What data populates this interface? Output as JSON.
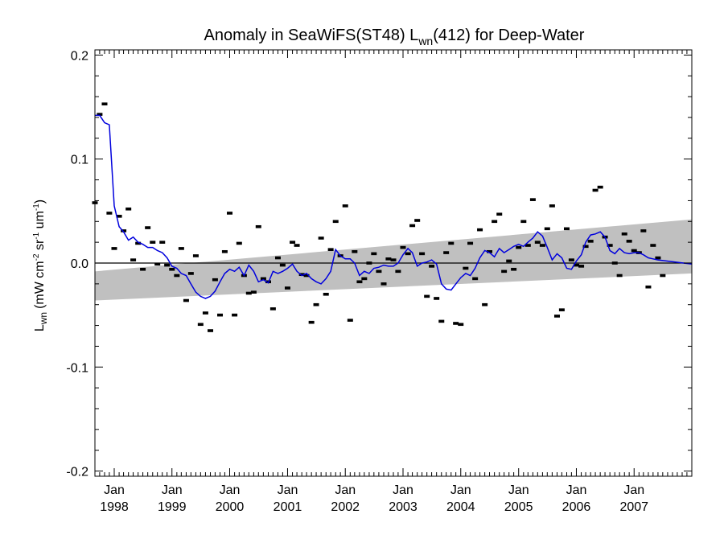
{
  "chart_data": {
    "type": "scatter",
    "title": {
      "pre": "Anomaly in SeaWiFS(ST48) L",
      "sub": "wn",
      "post": "(412) for Deep-Water"
    },
    "ylabel": {
      "main": "L",
      "sub": "wn",
      "units": "(mW cm",
      "e1": "-2",
      "mid1": " sr",
      "e2": "-1",
      "mid2": " um",
      "e3": "-1",
      "close": ")"
    },
    "ylim": [
      -0.205,
      0.205
    ],
    "xlim": [
      "1997-09-01",
      "2008-01-01"
    ],
    "y_ticks": [
      {
        "value": 0.2,
        "label": "0.2"
      },
      {
        "value": 0.1,
        "label": "0.1"
      },
      {
        "value": 0.0,
        "label": "0.0"
      },
      {
        "value": -0.1,
        "label": "-0.1"
      },
      {
        "value": -0.2,
        "label": "-0.2"
      }
    ],
    "x_ticks": [
      {
        "date": "1998-01-01",
        "month": "Jan",
        "year": "1998"
      },
      {
        "date": "1999-01-01",
        "month": "Jan",
        "year": "1999"
      },
      {
        "date": "2000-01-01",
        "month": "Jan",
        "year": "2000"
      },
      {
        "date": "2001-01-01",
        "month": "Jan",
        "year": "2001"
      },
      {
        "date": "2002-01-01",
        "month": "Jan",
        "year": "2002"
      },
      {
        "date": "2003-01-01",
        "month": "Jan",
        "year": "2003"
      },
      {
        "date": "2004-01-01",
        "month": "Jan",
        "year": "2004"
      },
      {
        "date": "2005-01-01",
        "month": "Jan",
        "year": "2005"
      },
      {
        "date": "2006-01-01",
        "month": "Jan",
        "year": "2006"
      },
      {
        "date": "2007-01-01",
        "month": "Jan",
        "year": "2007"
      }
    ],
    "zero_line": 0.0,
    "band": {
      "start": {
        "date": "1997-09-01",
        "low": -0.036,
        "high": -0.008
      },
      "end": {
        "date": "2008-01-01",
        "low": -0.01,
        "high": 0.042
      },
      "color": "#c0c0c0"
    },
    "points": [
      {
        "date": "1997-09-01",
        "y": 0.058
      },
      {
        "date": "1997-10-01",
        "y": 0.143
      },
      {
        "date": "1997-11-01",
        "y": 0.153
      },
      {
        "date": "1997-12-01",
        "y": 0.048
      },
      {
        "date": "1998-01-01",
        "y": 0.014
      },
      {
        "date": "1998-02-01",
        "y": 0.045
      },
      {
        "date": "1998-03-01",
        "y": 0.031
      },
      {
        "date": "1998-04-01",
        "y": 0.052
      },
      {
        "date": "1998-05-01",
        "y": 0.003
      },
      {
        "date": "1998-06-01",
        "y": 0.019
      },
      {
        "date": "1998-07-01",
        "y": -0.006
      },
      {
        "date": "1998-08-01",
        "y": 0.034
      },
      {
        "date": "1998-09-01",
        "y": 0.02
      },
      {
        "date": "1998-10-01",
        "y": -0.001
      },
      {
        "date": "1998-11-01",
        "y": 0.02
      },
      {
        "date": "1998-12-01",
        "y": -0.002
      },
      {
        "date": "1999-01-01",
        "y": -0.006
      },
      {
        "date": "1999-02-01",
        "y": -0.012
      },
      {
        "date": "1999-03-01",
        "y": 0.014
      },
      {
        "date": "1999-04-01",
        "y": -0.036
      },
      {
        "date": "1999-05-01",
        "y": -0.01
      },
      {
        "date": "1999-06-01",
        "y": 0.007
      },
      {
        "date": "1999-07-01",
        "y": -0.059
      },
      {
        "date": "1999-08-01",
        "y": -0.048
      },
      {
        "date": "1999-09-01",
        "y": -0.065
      },
      {
        "date": "1999-10-01",
        "y": -0.016
      },
      {
        "date": "1999-11-01",
        "y": -0.05
      },
      {
        "date": "1999-12-01",
        "y": 0.011
      },
      {
        "date": "2000-01-01",
        "y": 0.048
      },
      {
        "date": "2000-02-01",
        "y": -0.05
      },
      {
        "date": "2000-03-01",
        "y": 0.019
      },
      {
        "date": "2000-04-01",
        "y": -0.012
      },
      {
        "date": "2000-05-01",
        "y": -0.029
      },
      {
        "date": "2000-06-01",
        "y": -0.028
      },
      {
        "date": "2000-07-01",
        "y": 0.035
      },
      {
        "date": "2000-08-01",
        "y": -0.015
      },
      {
        "date": "2000-09-01",
        "y": -0.018
      },
      {
        "date": "2000-10-01",
        "y": -0.044
      },
      {
        "date": "2000-11-01",
        "y": 0.005
      },
      {
        "date": "2000-12-01",
        "y": -0.002
      },
      {
        "date": "2001-01-01",
        "y": -0.024
      },
      {
        "date": "2001-02-01",
        "y": 0.02
      },
      {
        "date": "2001-03-01",
        "y": 0.017
      },
      {
        "date": "2001-04-01",
        "y": -0.011
      },
      {
        "date": "2001-05-01",
        "y": -0.012
      },
      {
        "date": "2001-06-01",
        "y": -0.057
      },
      {
        "date": "2001-07-01",
        "y": -0.04
      },
      {
        "date": "2001-08-01",
        "y": 0.024
      },
      {
        "date": "2001-09-01",
        "y": -0.03
      },
      {
        "date": "2001-10-01",
        "y": 0.013
      },
      {
        "date": "2001-11-01",
        "y": 0.04
      },
      {
        "date": "2001-12-01",
        "y": 0.007
      },
      {
        "date": "2002-01-01",
        "y": 0.055
      },
      {
        "date": "2002-02-01",
        "y": -0.055
      },
      {
        "date": "2002-03-01",
        "y": 0.011
      },
      {
        "date": "2002-04-01",
        "y": -0.018
      },
      {
        "date": "2002-05-01",
        "y": -0.015
      },
      {
        "date": "2002-06-01",
        "y": 0.0
      },
      {
        "date": "2002-07-01",
        "y": 0.009
      },
      {
        "date": "2002-08-01",
        "y": -0.008
      },
      {
        "date": "2002-09-01",
        "y": -0.02
      },
      {
        "date": "2002-10-01",
        "y": 0.004
      },
      {
        "date": "2002-11-01",
        "y": 0.003
      },
      {
        "date": "2002-12-01",
        "y": -0.008
      },
      {
        "date": "2003-01-01",
        "y": 0.015
      },
      {
        "date": "2003-02-01",
        "y": 0.009
      },
      {
        "date": "2003-03-01",
        "y": 0.036
      },
      {
        "date": "2003-04-01",
        "y": 0.041
      },
      {
        "date": "2003-05-01",
        "y": 0.009
      },
      {
        "date": "2003-06-01",
        "y": -0.032
      },
      {
        "date": "2003-07-01",
        "y": -0.003
      },
      {
        "date": "2003-08-01",
        "y": -0.034
      },
      {
        "date": "2003-09-01",
        "y": -0.056
      },
      {
        "date": "2003-10-01",
        "y": 0.01
      },
      {
        "date": "2003-11-01",
        "y": 0.019
      },
      {
        "date": "2003-12-01",
        "y": -0.058
      },
      {
        "date": "2004-01-01",
        "y": -0.059
      },
      {
        "date": "2004-02-01",
        "y": -0.005
      },
      {
        "date": "2004-03-01",
        "y": 0.019
      },
      {
        "date": "2004-04-01",
        "y": -0.015
      },
      {
        "date": "2004-05-01",
        "y": 0.032
      },
      {
        "date": "2004-06-01",
        "y": -0.04
      },
      {
        "date": "2004-07-01",
        "y": 0.011
      },
      {
        "date": "2004-08-01",
        "y": 0.04
      },
      {
        "date": "2004-09-01",
        "y": 0.047
      },
      {
        "date": "2004-10-01",
        "y": -0.008
      },
      {
        "date": "2004-11-01",
        "y": 0.002
      },
      {
        "date": "2004-12-01",
        "y": -0.006
      },
      {
        "date": "2005-01-01",
        "y": 0.015
      },
      {
        "date": "2005-02-01",
        "y": 0.04
      },
      {
        "date": "2005-03-01",
        "y": 0.017
      },
      {
        "date": "2005-04-01",
        "y": 0.061
      },
      {
        "date": "2005-05-01",
        "y": 0.02
      },
      {
        "date": "2005-06-01",
        "y": 0.017
      },
      {
        "date": "2005-07-01",
        "y": 0.033
      },
      {
        "date": "2005-08-01",
        "y": 0.055
      },
      {
        "date": "2005-09-01",
        "y": -0.051
      },
      {
        "date": "2005-10-01",
        "y": -0.045
      },
      {
        "date": "2005-11-01",
        "y": 0.033
      },
      {
        "date": "2005-12-01",
        "y": 0.003
      },
      {
        "date": "2006-01-01",
        "y": -0.002
      },
      {
        "date": "2006-02-01",
        "y": -0.003
      },
      {
        "date": "2006-03-01",
        "y": 0.016
      },
      {
        "date": "2006-04-01",
        "y": 0.021
      },
      {
        "date": "2006-05-01",
        "y": 0.07
      },
      {
        "date": "2006-06-01",
        "y": 0.073
      },
      {
        "date": "2006-07-01",
        "y": 0.025
      },
      {
        "date": "2006-08-01",
        "y": 0.017
      },
      {
        "date": "2006-09-01",
        "y": 0.0
      },
      {
        "date": "2006-10-01",
        "y": -0.012
      },
      {
        "date": "2006-11-01",
        "y": 0.028
      },
      {
        "date": "2006-12-01",
        "y": 0.021
      },
      {
        "date": "2007-01-01",
        "y": 0.012
      },
      {
        "date": "2007-02-01",
        "y": 0.01
      },
      {
        "date": "2007-03-01",
        "y": 0.031
      },
      {
        "date": "2007-04-01",
        "y": -0.023
      },
      {
        "date": "2007-05-01",
        "y": 0.017
      },
      {
        "date": "2007-06-01",
        "y": 0.005
      },
      {
        "date": "2007-07-01",
        "y": -0.012
      }
    ],
    "trend_line": {
      "color": "#0000dd",
      "points": [
        {
          "date": "1997-09-01",
          "y": 0.142
        },
        {
          "date": "1997-10-01",
          "y": 0.142
        },
        {
          "date": "1997-11-01",
          "y": 0.135
        },
        {
          "date": "1997-12-01",
          "y": 0.133
        },
        {
          "date": "1998-01-01",
          "y": 0.055
        },
        {
          "date": "1998-02-01",
          "y": 0.035
        },
        {
          "date": "1998-03-01",
          "y": 0.03
        },
        {
          "date": "1998-04-01",
          "y": 0.022
        },
        {
          "date": "1998-05-01",
          "y": 0.025
        },
        {
          "date": "1998-06-01",
          "y": 0.02
        },
        {
          "date": "1998-07-01",
          "y": 0.018
        },
        {
          "date": "1998-08-01",
          "y": 0.015
        },
        {
          "date": "1998-09-01",
          "y": 0.015
        },
        {
          "date": "1998-10-01",
          "y": 0.012
        },
        {
          "date": "1998-11-01",
          "y": 0.01
        },
        {
          "date": "1998-12-01",
          "y": 0.005
        },
        {
          "date": "1999-01-01",
          "y": -0.003
        },
        {
          "date": "1999-02-01",
          "y": -0.005
        },
        {
          "date": "1999-03-01",
          "y": -0.01
        },
        {
          "date": "1999-04-01",
          "y": -0.012
        },
        {
          "date": "1999-05-01",
          "y": -0.02
        },
        {
          "date": "1999-06-01",
          "y": -0.028
        },
        {
          "date": "1999-07-01",
          "y": -0.032
        },
        {
          "date": "1999-08-01",
          "y": -0.034
        },
        {
          "date": "1999-09-01",
          "y": -0.032
        },
        {
          "date": "1999-10-01",
          "y": -0.027
        },
        {
          "date": "1999-11-01",
          "y": -0.018
        },
        {
          "date": "1999-12-01",
          "y": -0.01
        },
        {
          "date": "2000-01-01",
          "y": -0.006
        },
        {
          "date": "2000-02-01",
          "y": -0.008
        },
        {
          "date": "2000-03-01",
          "y": -0.004
        },
        {
          "date": "2000-04-01",
          "y": -0.012
        },
        {
          "date": "2000-05-01",
          "y": -0.002
        },
        {
          "date": "2000-06-01",
          "y": -0.008
        },
        {
          "date": "2000-07-01",
          "y": -0.018
        },
        {
          "date": "2000-08-01",
          "y": -0.016
        },
        {
          "date": "2000-09-01",
          "y": -0.019
        },
        {
          "date": "2000-10-01",
          "y": -0.008
        },
        {
          "date": "2000-11-01",
          "y": -0.01
        },
        {
          "date": "2000-12-01",
          "y": -0.008
        },
        {
          "date": "2001-01-01",
          "y": -0.005
        },
        {
          "date": "2001-02-01",
          "y": -0.001
        },
        {
          "date": "2001-03-01",
          "y": -0.008
        },
        {
          "date": "2001-04-01",
          "y": -0.012
        },
        {
          "date": "2001-05-01",
          "y": -0.01
        },
        {
          "date": "2001-06-01",
          "y": -0.015
        },
        {
          "date": "2001-07-01",
          "y": -0.018
        },
        {
          "date": "2001-08-01",
          "y": -0.02
        },
        {
          "date": "2001-09-01",
          "y": -0.015
        },
        {
          "date": "2001-10-01",
          "y": -0.008
        },
        {
          "date": "2001-11-01",
          "y": 0.013
        },
        {
          "date": "2001-12-01",
          "y": 0.007
        },
        {
          "date": "2002-01-01",
          "y": 0.004
        },
        {
          "date": "2002-02-01",
          "y": 0.004
        },
        {
          "date": "2002-03-01",
          "y": 0.0
        },
        {
          "date": "2002-04-01",
          "y": -0.012
        },
        {
          "date": "2002-05-01",
          "y": -0.008
        },
        {
          "date": "2002-06-01",
          "y": -0.01
        },
        {
          "date": "2002-07-01",
          "y": -0.005
        },
        {
          "date": "2002-08-01",
          "y": -0.004
        },
        {
          "date": "2002-09-01",
          "y": -0.002
        },
        {
          "date": "2002-10-01",
          "y": -0.003
        },
        {
          "date": "2002-11-01",
          "y": -0.003
        },
        {
          "date": "2002-12-01",
          "y": 0.0
        },
        {
          "date": "2003-01-01",
          "y": 0.008
        },
        {
          "date": "2003-02-01",
          "y": 0.014
        },
        {
          "date": "2003-03-01",
          "y": 0.01
        },
        {
          "date": "2003-04-01",
          "y": -0.003
        },
        {
          "date": "2003-05-01",
          "y": 0.0
        },
        {
          "date": "2003-06-01",
          "y": 0.001
        },
        {
          "date": "2003-07-01",
          "y": 0.003
        },
        {
          "date": "2003-08-01",
          "y": -0.001
        },
        {
          "date": "2003-09-01",
          "y": -0.02
        },
        {
          "date": "2003-10-01",
          "y": -0.025
        },
        {
          "date": "2003-11-01",
          "y": -0.026
        },
        {
          "date": "2003-12-01",
          "y": -0.02
        },
        {
          "date": "2004-01-01",
          "y": -0.014
        },
        {
          "date": "2004-02-01",
          "y": -0.01
        },
        {
          "date": "2004-03-01",
          "y": -0.012
        },
        {
          "date": "2004-04-01",
          "y": -0.005
        },
        {
          "date": "2004-05-01",
          "y": 0.005
        },
        {
          "date": "2004-06-01",
          "y": 0.012
        },
        {
          "date": "2004-07-01",
          "y": 0.01
        },
        {
          "date": "2004-08-01",
          "y": 0.006
        },
        {
          "date": "2004-09-01",
          "y": 0.014
        },
        {
          "date": "2004-10-01",
          "y": 0.01
        },
        {
          "date": "2004-11-01",
          "y": 0.013
        },
        {
          "date": "2004-12-01",
          "y": 0.016
        },
        {
          "date": "2005-01-01",
          "y": 0.018
        },
        {
          "date": "2005-02-01",
          "y": 0.016
        },
        {
          "date": "2005-03-01",
          "y": 0.02
        },
        {
          "date": "2005-04-01",
          "y": 0.024
        },
        {
          "date": "2005-05-01",
          "y": 0.03
        },
        {
          "date": "2005-06-01",
          "y": 0.026
        },
        {
          "date": "2005-07-01",
          "y": 0.015
        },
        {
          "date": "2005-08-01",
          "y": 0.003
        },
        {
          "date": "2005-09-01",
          "y": 0.009
        },
        {
          "date": "2005-10-01",
          "y": 0.005
        },
        {
          "date": "2005-11-01",
          "y": -0.005
        },
        {
          "date": "2005-12-01",
          "y": -0.006
        },
        {
          "date": "2006-01-01",
          "y": 0.002
        },
        {
          "date": "2006-02-01",
          "y": 0.008
        },
        {
          "date": "2006-03-01",
          "y": 0.02
        },
        {
          "date": "2006-04-01",
          "y": 0.027
        },
        {
          "date": "2006-05-01",
          "y": 0.028
        },
        {
          "date": "2006-06-01",
          "y": 0.03
        },
        {
          "date": "2006-07-01",
          "y": 0.025
        },
        {
          "date": "2006-08-01",
          "y": 0.012
        },
        {
          "date": "2006-09-01",
          "y": 0.009
        },
        {
          "date": "2006-10-01",
          "y": 0.014
        },
        {
          "date": "2006-11-01",
          "y": 0.01
        },
        {
          "date": "2006-12-01",
          "y": 0.009
        },
        {
          "date": "2007-01-01",
          "y": 0.01
        },
        {
          "date": "2007-02-01",
          "y": 0.01
        },
        {
          "date": "2007-03-01",
          "y": 0.008
        },
        {
          "date": "2007-04-01",
          "y": 0.005
        },
        {
          "date": "2007-05-01",
          "y": 0.004
        },
        {
          "date": "2007-06-01",
          "y": 0.003
        },
        {
          "date": "2008-01-01",
          "y": -0.001
        }
      ]
    }
  }
}
